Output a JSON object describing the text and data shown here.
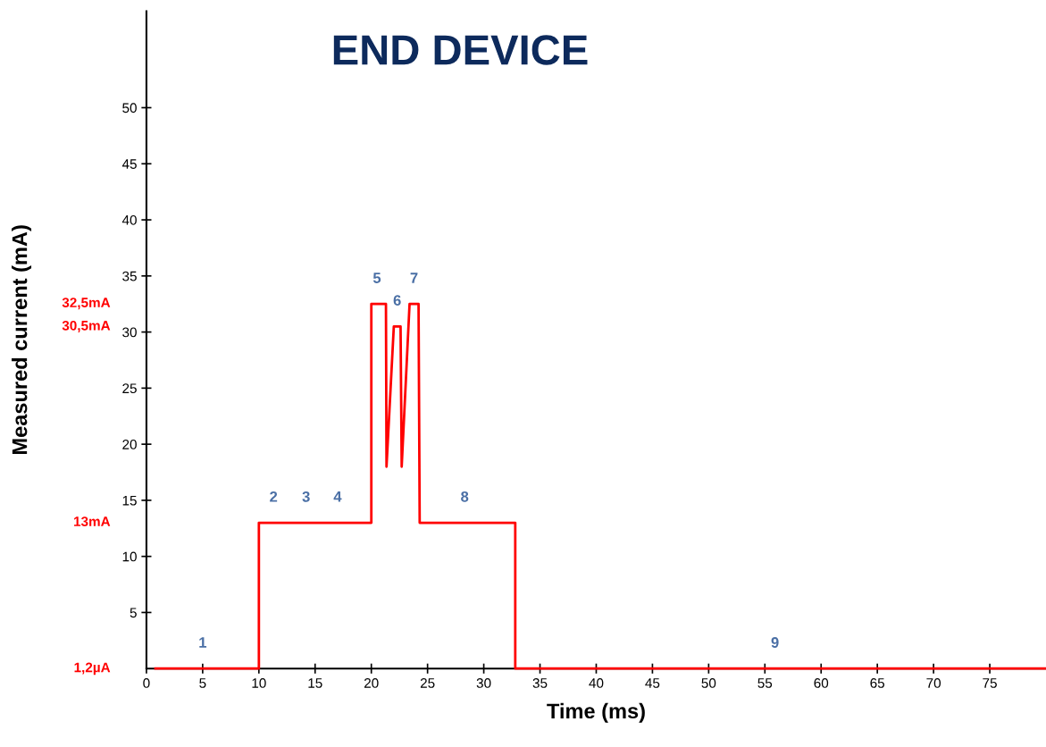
{
  "chart_data": {
    "type": "line",
    "title": "END DEVICE",
    "xlabel": "Time (ms)",
    "ylabel": "Measured current (mA)",
    "xlim": [
      0,
      80
    ],
    "ylim": [
      0,
      58.6
    ],
    "xticks": [
      0,
      5,
      10,
      15,
      20,
      25,
      30,
      35,
      40,
      45,
      50,
      55,
      60,
      65,
      70,
      75
    ],
    "yticks": [
      5,
      10,
      15,
      20,
      25,
      30,
      35,
      40,
      45,
      50
    ],
    "grid": false,
    "legend": false,
    "series": [
      {
        "color": "#ff0000",
        "x": [
          0.8,
          10,
          10,
          20,
          20,
          21.3,
          21.35,
          22,
          22.6,
          22.7,
          23.4,
          24.2,
          24.3,
          32.8,
          32.8,
          80
        ],
        "values": [
          0.0012,
          0.0012,
          13,
          13,
          32.5,
          32.5,
          18,
          30.5,
          30.5,
          18,
          32.5,
          32.5,
          13,
          13,
          0.0012,
          0.0012
        ]
      }
    ],
    "annotations": [
      "32,5mA",
      "30,5mA",
      "13mA",
      "1,2µA",
      {
        "text": "1",
        "x": 5,
        "y": 0.0012
      },
      {
        "text": "2",
        "x": 11.3,
        "y": 13
      },
      {
        "text": "3",
        "x": 14.2,
        "y": 13
      },
      {
        "text": "4",
        "x": 17,
        "y": 13
      },
      {
        "text": "5",
        "x": 20.5,
        "y": 32.5
      },
      {
        "text": "6",
        "x": 22.3,
        "y": 30.5
      },
      {
        "text": "7",
        "x": 23.8,
        "y": 32.5
      },
      {
        "text": "8",
        "x": 28.3,
        "y": 13
      },
      {
        "text": "9",
        "x": 55.9,
        "y": 0.0012
      }
    ]
  }
}
